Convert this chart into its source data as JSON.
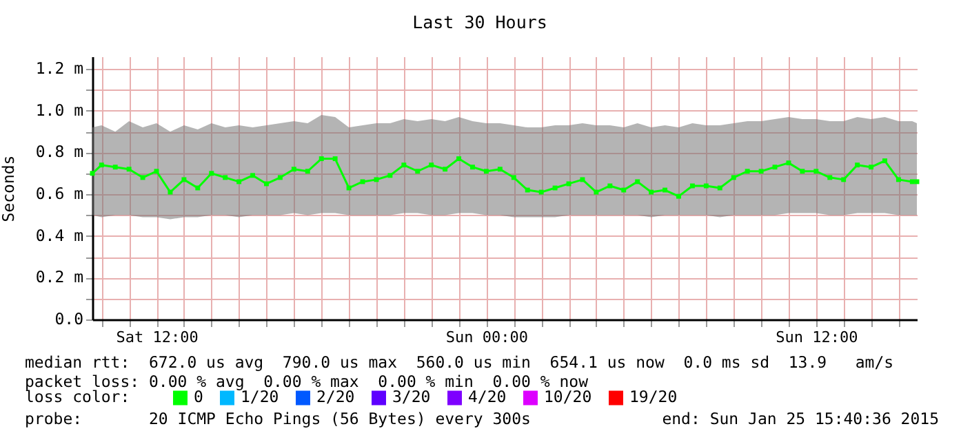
{
  "chart_data": {
    "type": "line",
    "title": "Last 30 Hours",
    "ylabel": "Seconds",
    "legend_title": "loss color:",
    "annotations": [
      "median rtt:  672.0 us avg  790.0 us max  560.0 us min  654.1 us now  0.0 ms sd  13.9   am/s",
      "packet loss: 0.00 % avg  0.00 % max  0.00 % min  0.00 % now",
      "probe:       20 ICMP Echo Pings (56 Bytes) every 300s",
      "end: Sun Jan 25 15:40:36 2015"
    ],
    "x": [
      "2015-01-24T09:40",
      "2015-01-24T10:00",
      "2015-01-24T10:30",
      "2015-01-24T11:00",
      "2015-01-24T11:30",
      "2015-01-24T12:00",
      "2015-01-24T12:30",
      "2015-01-24T13:00",
      "2015-01-24T13:30",
      "2015-01-24T14:00",
      "2015-01-24T14:30",
      "2015-01-24T15:00",
      "2015-01-24T15:30",
      "2015-01-24T16:00",
      "2015-01-24T16:30",
      "2015-01-24T17:00",
      "2015-01-24T17:30",
      "2015-01-24T18:00",
      "2015-01-24T18:30",
      "2015-01-24T19:00",
      "2015-01-24T19:30",
      "2015-01-24T20:00",
      "2015-01-24T20:30",
      "2015-01-24T21:00",
      "2015-01-24T21:30",
      "2015-01-24T22:00",
      "2015-01-24T22:30",
      "2015-01-24T23:00",
      "2015-01-24T23:30",
      "2015-01-25T00:00",
      "2015-01-25T00:30",
      "2015-01-25T01:00",
      "2015-01-25T01:30",
      "2015-01-25T02:00",
      "2015-01-25T02:30",
      "2015-01-25T03:00",
      "2015-01-25T03:30",
      "2015-01-25T04:00",
      "2015-01-25T04:30",
      "2015-01-25T05:00",
      "2015-01-25T05:30",
      "2015-01-25T06:00",
      "2015-01-25T06:30",
      "2015-01-25T07:00",
      "2015-01-25T07:30",
      "2015-01-25T08:00",
      "2015-01-25T08:30",
      "2015-01-25T09:00",
      "2015-01-25T09:30",
      "2015-01-25T10:00",
      "2015-01-25T10:30",
      "2015-01-25T11:00",
      "2015-01-25T11:30",
      "2015-01-25T12:00",
      "2015-01-25T12:30",
      "2015-01-25T13:00",
      "2015-01-25T13:30",
      "2015-01-25T14:00",
      "2015-01-25T14:30",
      "2015-01-25T15:00",
      "2015-01-25T15:30",
      "2015-01-25T15:40"
    ],
    "series": [
      {
        "name": "0",
        "color": "#00ff00",
        "values": [
          0.7,
          0.74,
          0.73,
          0.72,
          0.68,
          0.71,
          0.61,
          0.67,
          0.63,
          0.7,
          0.68,
          0.66,
          0.69,
          0.65,
          0.68,
          0.72,
          0.71,
          0.77,
          0.77,
          0.63,
          0.66,
          0.67,
          0.69,
          0.74,
          0.71,
          0.74,
          0.72,
          0.77,
          0.73,
          0.71,
          0.72,
          0.68,
          0.62,
          0.61,
          0.63,
          0.65,
          0.67,
          0.61,
          0.64,
          0.62,
          0.66,
          0.61,
          0.62,
          0.59,
          0.64,
          0.64,
          0.63,
          0.68,
          0.71,
          0.71,
          0.73,
          0.75,
          0.71,
          0.71,
          0.68,
          0.67,
          0.74,
          0.73,
          0.76,
          0.67,
          0.66,
          0.66
        ],
        "lower": [
          0.5,
          0.49,
          0.5,
          0.5,
          0.49,
          0.49,
          0.48,
          0.49,
          0.49,
          0.5,
          0.5,
          0.49,
          0.5,
          0.5,
          0.5,
          0.51,
          0.5,
          0.51,
          0.51,
          0.5,
          0.5,
          0.5,
          0.5,
          0.51,
          0.51,
          0.5,
          0.5,
          0.51,
          0.51,
          0.5,
          0.5,
          0.49,
          0.49,
          0.49,
          0.49,
          0.5,
          0.5,
          0.5,
          0.5,
          0.5,
          0.5,
          0.49,
          0.5,
          0.5,
          0.5,
          0.5,
          0.49,
          0.5,
          0.5,
          0.5,
          0.5,
          0.51,
          0.51,
          0.51,
          0.5,
          0.5,
          0.51,
          0.51,
          0.51,
          0.5,
          0.5,
          0.5
        ],
        "upper": [
          0.92,
          0.93,
          0.9,
          0.95,
          0.92,
          0.94,
          0.9,
          0.93,
          0.91,
          0.94,
          0.92,
          0.93,
          0.92,
          0.93,
          0.94,
          0.95,
          0.94,
          0.98,
          0.97,
          0.92,
          0.93,
          0.94,
          0.94,
          0.96,
          0.95,
          0.96,
          0.95,
          0.97,
          0.95,
          0.94,
          0.94,
          0.93,
          0.92,
          0.92,
          0.93,
          0.93,
          0.94,
          0.93,
          0.93,
          0.92,
          0.94,
          0.92,
          0.93,
          0.92,
          0.94,
          0.93,
          0.93,
          0.94,
          0.95,
          0.95,
          0.96,
          0.97,
          0.96,
          0.96,
          0.95,
          0.95,
          0.97,
          0.96,
          0.97,
          0.95,
          0.95,
          0.94
        ]
      },
      {
        "name": "1/20",
        "color": "#00b8ff",
        "values": [
          null,
          null,
          null,
          null,
          null,
          null,
          null,
          null,
          null,
          null,
          null,
          null,
          null,
          null,
          null,
          null,
          null,
          null,
          null,
          null,
          null,
          null,
          null,
          null,
          null,
          null,
          null,
          null,
          null,
          null,
          null,
          null,
          null,
          null,
          null,
          null,
          null,
          null,
          null,
          null,
          null,
          null,
          null,
          null,
          null,
          null,
          null,
          null,
          null,
          null,
          null,
          null,
          null,
          null,
          null,
          null,
          null,
          null,
          null,
          null,
          null,
          null
        ]
      },
      {
        "name": "2/20",
        "color": "#0059ff",
        "values": [
          null,
          null,
          null,
          null,
          null,
          null,
          null,
          null,
          null,
          null,
          null,
          null,
          null,
          null,
          null,
          null,
          null,
          null,
          null,
          null,
          null,
          null,
          null,
          null,
          null,
          null,
          null,
          null,
          null,
          null,
          null,
          null,
          null,
          null,
          null,
          null,
          null,
          null,
          null,
          null,
          null,
          null,
          null,
          null,
          null,
          null,
          null,
          null,
          null,
          null,
          null,
          null,
          null,
          null,
          null,
          null,
          null,
          null,
          null,
          null,
          null,
          null
        ]
      },
      {
        "name": "3/20",
        "color": "#5e00ff",
        "values": [
          null,
          null,
          null,
          null,
          null,
          null,
          null,
          null,
          null,
          null,
          null,
          null,
          null,
          null,
          null,
          null,
          null,
          null,
          null,
          null,
          null,
          null,
          null,
          null,
          null,
          null,
          null,
          null,
          null,
          null,
          null,
          null,
          null,
          null,
          null,
          null,
          null,
          null,
          null,
          null,
          null,
          null,
          null,
          null,
          null,
          null,
          null,
          null,
          null,
          null,
          null,
          null,
          null,
          null,
          null,
          null,
          null,
          null,
          null,
          null,
          null,
          null
        ]
      },
      {
        "name": "4/20",
        "color": "#7e00ff",
        "values": [
          null,
          null,
          null,
          null,
          null,
          null,
          null,
          null,
          null,
          null,
          null,
          null,
          null,
          null,
          null,
          null,
          null,
          null,
          null,
          null,
          null,
          null,
          null,
          null,
          null,
          null,
          null,
          null,
          null,
          null,
          null,
          null,
          null,
          null,
          null,
          null,
          null,
          null,
          null,
          null,
          null,
          null,
          null,
          null,
          null,
          null,
          null,
          null,
          null,
          null,
          null,
          null,
          null,
          null,
          null,
          null,
          null,
          null,
          null,
          null,
          null,
          null
        ]
      },
      {
        "name": "10/20",
        "color": "#dd00ff",
        "values": [
          null,
          null,
          null,
          null,
          null,
          null,
          null,
          null,
          null,
          null,
          null,
          null,
          null,
          null,
          null,
          null,
          null,
          null,
          null,
          null,
          null,
          null,
          null,
          null,
          null,
          null,
          null,
          null,
          null,
          null,
          null,
          null,
          null,
          null,
          null,
          null,
          null,
          null,
          null,
          null,
          null,
          null,
          null,
          null,
          null,
          null,
          null,
          null,
          null,
          null,
          null,
          null,
          null,
          null,
          null,
          null,
          null,
          null,
          null,
          null,
          null,
          null
        ]
      },
      {
        "name": "19/20",
        "color": "#ff0000",
        "values": [
          null,
          null,
          null,
          null,
          null,
          null,
          null,
          null,
          null,
          null,
          null,
          null,
          null,
          null,
          null,
          null,
          null,
          null,
          null,
          null,
          null,
          null,
          null,
          null,
          null,
          null,
          null,
          null,
          null,
          null,
          null,
          null,
          null,
          null,
          null,
          null,
          null,
          null,
          null,
          null,
          null,
          null,
          null,
          null,
          null,
          null,
          null,
          null,
          null,
          null,
          null,
          null,
          null,
          null,
          null,
          null,
          null,
          null,
          null,
          null,
          null,
          null
        ]
      }
    ],
    "xlim": [
      "2015-01-24T09:40",
      "2015-01-25T15:40"
    ],
    "xticks": [
      {
        "value": "2015-01-24T10:00",
        "label": null
      },
      {
        "value": "2015-01-24T11:00",
        "label": null
      },
      {
        "value": "2015-01-24T12:00",
        "label": "Sat 12:00"
      },
      {
        "value": "2015-01-24T13:00",
        "label": null
      },
      {
        "value": "2015-01-24T14:00",
        "label": null
      },
      {
        "value": "2015-01-24T15:00",
        "label": null
      },
      {
        "value": "2015-01-24T16:00",
        "label": null
      },
      {
        "value": "2015-01-24T17:00",
        "label": null
      },
      {
        "value": "2015-01-24T18:00",
        "label": null
      },
      {
        "value": "2015-01-24T19:00",
        "label": null
      },
      {
        "value": "2015-01-24T20:00",
        "label": null
      },
      {
        "value": "2015-01-24T21:00",
        "label": null
      },
      {
        "value": "2015-01-24T22:00",
        "label": null
      },
      {
        "value": "2015-01-24T23:00",
        "label": null
      },
      {
        "value": "2015-01-25T00:00",
        "label": "Sun 00:00"
      },
      {
        "value": "2015-01-25T01:00",
        "label": null
      },
      {
        "value": "2015-01-25T02:00",
        "label": null
      },
      {
        "value": "2015-01-25T03:00",
        "label": null
      },
      {
        "value": "2015-01-25T04:00",
        "label": null
      },
      {
        "value": "2015-01-25T05:00",
        "label": null
      },
      {
        "value": "2015-01-25T06:00",
        "label": null
      },
      {
        "value": "2015-01-25T07:00",
        "label": null
      },
      {
        "value": "2015-01-25T08:00",
        "label": null
      },
      {
        "value": "2015-01-25T09:00",
        "label": null
      },
      {
        "value": "2015-01-25T10:00",
        "label": null
      },
      {
        "value": "2015-01-25T11:00",
        "label": null
      },
      {
        "value": "2015-01-25T12:00",
        "label": "Sun 12:00"
      },
      {
        "value": "2015-01-25T13:00",
        "label": null
      },
      {
        "value": "2015-01-25T14:00",
        "label": null
      },
      {
        "value": "2015-01-25T15:00",
        "label": null
      }
    ],
    "ylim": [
      0,
      1.26
    ],
    "yticks": [
      {
        "value": 0,
        "label": "0.0"
      },
      {
        "value": 0.1,
        "label": null
      },
      {
        "value": 0.2,
        "label": "0.2 m"
      },
      {
        "value": 0.3,
        "label": null
      },
      {
        "value": 0.4,
        "label": "0.4 m"
      },
      {
        "value": 0.5,
        "label": null
      },
      {
        "value": 0.6,
        "label": "0.6 m"
      },
      {
        "value": 0.7,
        "label": null
      },
      {
        "value": 0.8,
        "label": "0.8 m"
      },
      {
        "value": 0.9,
        "label": null
      },
      {
        "value": 1.0,
        "label": "1.0 m"
      },
      {
        "value": 1.1,
        "label": null
      },
      {
        "value": 1.2,
        "label": "1.2 m"
      }
    ],
    "grid": true,
    "legend": "bottom left",
    "marker": "square",
    "line_style": "solid"
  }
}
